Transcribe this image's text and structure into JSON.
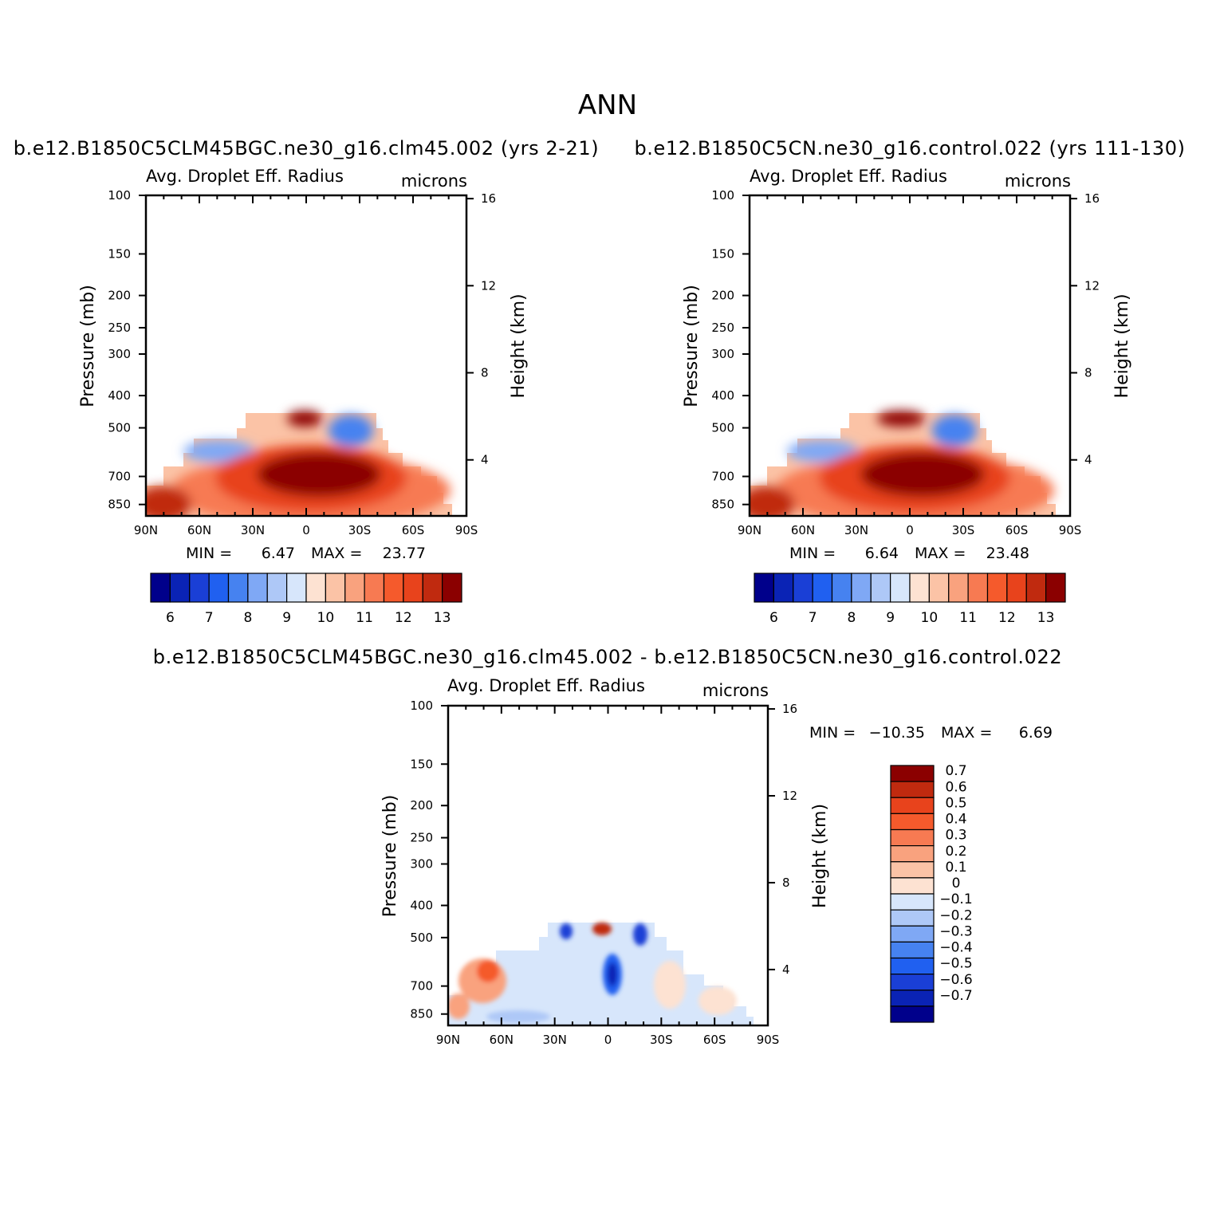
{
  "chart_data": {
    "title": "ANN",
    "type": "heatmap",
    "palette_main": [
      "#00008b",
      "#0a23b5",
      "#1a3fd6",
      "#2060f0",
      "#4682f0",
      "#7fa8f5",
      "#aec8f7",
      "#d7e6fb",
      "#fde2d2",
      "#fbc3a6",
      "#f9a27e",
      "#f77a52",
      "#f55a2c",
      "#e8431c",
      "#c02a0f",
      "#8b0000"
    ],
    "palette_diff": [
      "#8b0000",
      "#c02a0f",
      "#e8431c",
      "#f55a2c",
      "#f77a52",
      "#f9a27e",
      "#fbc3a6",
      "#fde2d2",
      "#d7e6fb",
      "#aec8f7",
      "#7fa8f5",
      "#4682f0",
      "#2060f0",
      "#1a3fd6",
      "#0a23b5",
      "#00008b"
    ],
    "panels": [
      {
        "id": "case1",
        "subtitle": "b.e12.B1850C5CLM45BGC.ne30_g16.clm45.002 (yrs 2-21)",
        "field": "Avg. Droplet Eff. Radius",
        "units": "microns",
        "ylabel": "Pressure (mb)",
        "ylabel_right": "Height (km)",
        "xticks": [
          "90N",
          "60N",
          "30N",
          "0",
          "30S",
          "60S",
          "90S"
        ],
        "yticks": [
          "100",
          "150",
          "200",
          "250",
          "300",
          "400",
          "500",
          "700",
          "850"
        ],
        "height_ticks": [
          "16",
          "12",
          "8",
          "4"
        ],
        "min_label": "MIN =",
        "min_value": "6.47",
        "max_label": "MAX =",
        "max_value": "23.77",
        "colorbar_labels": [
          "6",
          "7",
          "8",
          "9",
          "10",
          "11",
          "12",
          "13"
        ]
      },
      {
        "id": "case2",
        "subtitle": "b.e12.B1850C5CN.ne30_g16.control.022 (yrs 111-130)",
        "field": "Avg. Droplet Eff. Radius",
        "units": "microns",
        "ylabel": "Pressure (mb)",
        "ylabel_right": "Height (km)",
        "xticks": [
          "90N",
          "60N",
          "30N",
          "0",
          "30S",
          "60S",
          "90S"
        ],
        "yticks": [
          "100",
          "150",
          "200",
          "250",
          "300",
          "400",
          "500",
          "700",
          "850"
        ],
        "height_ticks": [
          "16",
          "12",
          "8",
          "4"
        ],
        "min_label": "MIN =",
        "min_value": "6.64",
        "max_label": "MAX =",
        "max_value": "23.48",
        "colorbar_labels": [
          "6",
          "7",
          "8",
          "9",
          "10",
          "11",
          "12",
          "13"
        ]
      },
      {
        "id": "diff",
        "subtitle": "b.e12.B1850C5CLM45BGC.ne30_g16.clm45.002 - b.e12.B1850C5CN.ne30_g16.control.022",
        "field": "Avg. Droplet Eff. Radius",
        "units": "microns",
        "ylabel": "Pressure (mb)",
        "ylabel_right": "Height (km)",
        "xticks": [
          "90N",
          "60N",
          "30N",
          "0",
          "30S",
          "60S",
          "90S"
        ],
        "yticks": [
          "100",
          "150",
          "200",
          "250",
          "300",
          "400",
          "500",
          "700",
          "850"
        ],
        "height_ticks": [
          "16",
          "12",
          "8",
          "4"
        ],
        "min_label": "MIN =",
        "min_value": "-10.35",
        "max_label": "MAX =",
        "max_value": "6.69",
        "colorbar_labels": [
          "0.7",
          "0.6",
          "0.5",
          "0.4",
          "0.3",
          "0.2",
          "0.1",
          "0",
          "-0.1",
          "-0.2",
          "-0.3",
          "-0.4",
          "-0.5",
          "-0.6",
          "-0.7"
        ]
      }
    ]
  }
}
